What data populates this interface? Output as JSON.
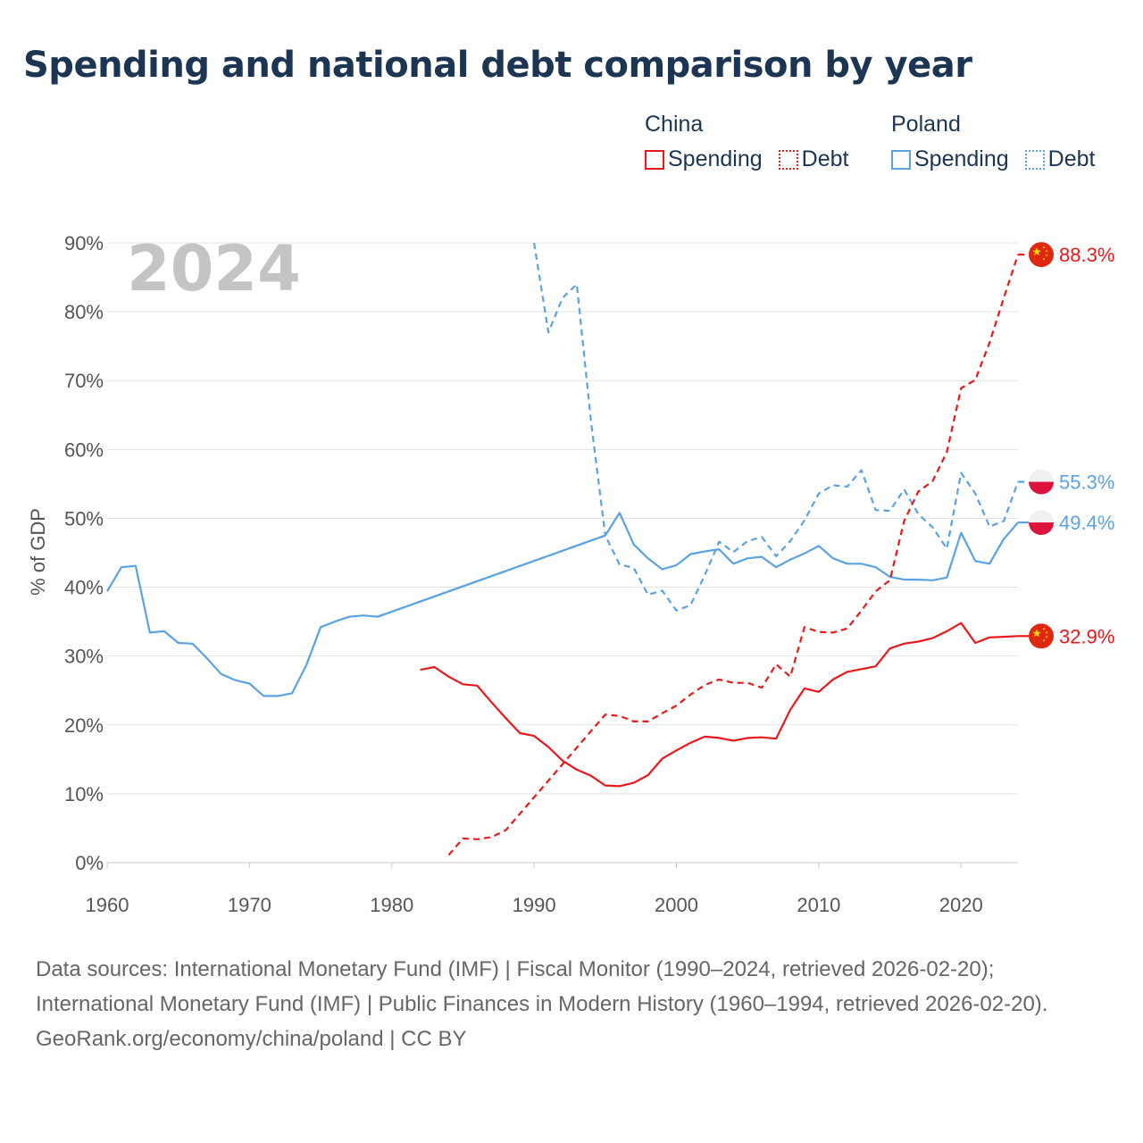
{
  "title": "Spending and national debt comparison by year",
  "legend": {
    "groups": [
      {
        "name": "China",
        "items": [
          {
            "label": "Spending",
            "style": "solid",
            "color": "#e8191a"
          },
          {
            "label": "Debt",
            "style": "dotted",
            "color": "#e8191a"
          }
        ]
      },
      {
        "name": "Poland",
        "items": [
          {
            "label": "Spending",
            "style": "solid",
            "color": "#5ba3e0"
          },
          {
            "label": "Debt",
            "style": "dotted",
            "color": "#5ba3e0"
          }
        ]
      }
    ]
  },
  "chart_data": {
    "type": "line",
    "year_label": "2024",
    "ylabel": "% of GDP",
    "xlim": [
      1960,
      2024
    ],
    "ylim": [
      0,
      90
    ],
    "xticks": [
      1960,
      1970,
      1980,
      1990,
      2000,
      2010,
      2020
    ],
    "yticks": [
      0,
      10,
      20,
      30,
      40,
      50,
      60,
      70,
      80,
      90
    ],
    "ytick_labels": [
      "0%",
      "10%",
      "20%",
      "30%",
      "40%",
      "50%",
      "60%",
      "70%",
      "80%",
      "90%"
    ],
    "grid": true,
    "series": [
      {
        "name": "Poland Spending",
        "country": "Poland",
        "measure": "Spending",
        "color": "#5ba3e0",
        "dash": false,
        "end_label": "49.4%",
        "flag": "poland",
        "x": [
          1960,
          1961,
          1962,
          1963,
          1964,
          1965,
          1966,
          1967,
          1968,
          1969,
          1970,
          1971,
          1972,
          1973,
          1974,
          1975,
          1976,
          1977,
          1978,
          1979,
          1995,
          1996,
          1997,
          1998,
          1999,
          2000,
          2001,
          2002,
          2003,
          2004,
          2005,
          2006,
          2007,
          2008,
          2009,
          2010,
          2011,
          2012,
          2013,
          2014,
          2015,
          2016,
          2017,
          2018,
          2019,
          2020,
          2021,
          2022,
          2023,
          2024
        ],
        "values": [
          39.4,
          42.9,
          43.1,
          33.4,
          33.6,
          31.9,
          31.8,
          29.7,
          27.4,
          26.5,
          26.0,
          24.2,
          24.2,
          24.6,
          28.7,
          34.2,
          35.0,
          35.7,
          35.9,
          35.7,
          47.5,
          50.8,
          46.2,
          44.2,
          42.6,
          43.2,
          44.8,
          45.2,
          45.5,
          43.4,
          44.2,
          44.4,
          42.9,
          44.0,
          44.9,
          46.0,
          44.2,
          43.4,
          43.4,
          42.9,
          41.5,
          41.1,
          41.1,
          41.0,
          41.4,
          47.9,
          43.8,
          43.4,
          47.0,
          49.4
        ]
      },
      {
        "name": "Poland Debt",
        "country": "Poland",
        "measure": "Debt",
        "color": "#5ba3e0",
        "dash": true,
        "end_label": "55.3%",
        "flag": "poland",
        "x": [
          1979,
          1995,
          1996,
          1997,
          1998,
          1999,
          2000,
          2001,
          2002,
          2003,
          2004,
          2005,
          2006,
          2007,
          2008,
          2009,
          2010,
          2011,
          2012,
          2013,
          2014,
          2015,
          2016,
          2017,
          2018,
          2019,
          2020,
          2021,
          2022,
          2023,
          2024
        ],
        "values": [
          35.7,
          47.5,
          43.3,
          42.8,
          38.9,
          39.5,
          36.6,
          37.4,
          41.8,
          46.6,
          45.1,
          46.7,
          47.3,
          44.5,
          46.7,
          49.7,
          53.6,
          54.8,
          54.6,
          57.0,
          51.2,
          51.1,
          54.2,
          50.6,
          48.7,
          45.6,
          56.6,
          53.6,
          48.8,
          49.6,
          55.3
        ]
      },
      {
        "name": "Poland Debt (early)",
        "country": "Poland",
        "measure": "Debt",
        "color": "#5ba3e0",
        "dash": true,
        "end_label": "",
        "flag": "",
        "x": [
          1990,
          1991,
          1992,
          1993,
          1994,
          1995
        ],
        "values": [
          90.0,
          77.0,
          82.0,
          84.0,
          64.0,
          47.5
        ]
      },
      {
        "name": "China Spending",
        "country": "China",
        "measure": "Spending",
        "color": "#e8191a",
        "dash": false,
        "end_label": "32.9%",
        "flag": "china",
        "x": [
          1982,
          1983,
          1984,
          1985,
          1986,
          1987,
          1988,
          1989,
          1990,
          1991,
          1992,
          1993,
          1994,
          1995,
          1996,
          1997,
          1998,
          1999,
          2000,
          2001,
          2002,
          2003,
          2004,
          2005,
          2006,
          2007,
          2008,
          2009,
          2010,
          2011,
          2012,
          2013,
          2014,
          2015,
          2016,
          2017,
          2018,
          2019,
          2020,
          2021,
          2022,
          2023,
          2024
        ],
        "values": [
          28.0,
          28.4,
          27.0,
          25.9,
          25.7,
          23.3,
          21.0,
          18.8,
          18.4,
          16.8,
          14.8,
          13.5,
          12.6,
          11.2,
          11.1,
          11.6,
          12.7,
          15.1,
          16.3,
          17.4,
          18.3,
          18.1,
          17.7,
          18.1,
          18.2,
          18.0,
          22.2,
          25.3,
          24.8,
          26.6,
          27.7,
          28.1,
          28.5,
          31.1,
          31.8,
          32.1,
          32.6,
          33.6,
          34.8,
          31.9,
          32.7,
          32.8,
          32.9
        ]
      },
      {
        "name": "China Debt",
        "country": "China",
        "measure": "Debt",
        "color": "#e8191a",
        "dash": true,
        "end_label": "88.3%",
        "flag": "china",
        "x": [
          1984,
          1985,
          1986,
          1987,
          1988,
          1995,
          1996,
          1997,
          1998,
          1999,
          2000,
          2001,
          2002,
          2003,
          2004,
          2005,
          2006,
          2007,
          2008,
          2009,
          2010,
          2011,
          2012,
          2013,
          2014,
          2015,
          2016,
          2017,
          2018,
          2019,
          2020,
          2021,
          2022,
          2023,
          2024
        ],
        "values": [
          1.1,
          3.5,
          3.4,
          3.7,
          4.7,
          21.5,
          21.3,
          20.5,
          20.5,
          21.7,
          22.8,
          24.4,
          25.8,
          26.6,
          26.1,
          26.1,
          25.4,
          28.8,
          27.0,
          34.2,
          33.5,
          33.4,
          34.0,
          36.6,
          39.4,
          41.0,
          49.6,
          53.9,
          55.4,
          59.6,
          68.9,
          70.1,
          75.5,
          82.0,
          88.3
        ]
      }
    ]
  },
  "footer": {
    "sources": "Data sources: International Monetary Fund (IMF) | Fiscal Monitor (1990–2024, retrieved 2026-02-20); International Monetary Fund (IMF) | Public Finances in Modern History (1960–1994, retrieved 2026-02-20).",
    "credit": "GeoRank.org/economy/china/poland | CC BY"
  }
}
